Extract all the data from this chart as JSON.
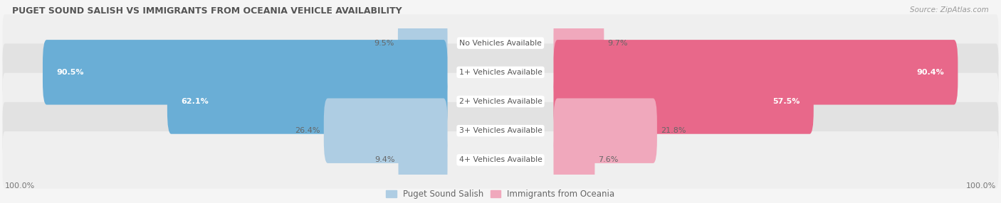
{
  "title": "PUGET SOUND SALISH VS IMMIGRANTS FROM OCEANIA VEHICLE AVAILABILITY",
  "source": "Source: ZipAtlas.com",
  "categories": [
    "No Vehicles Available",
    "1+ Vehicles Available",
    "2+ Vehicles Available",
    "3+ Vehicles Available",
    "4+ Vehicles Available"
  ],
  "left_values": [
    9.5,
    90.5,
    62.1,
    26.4,
    9.4
  ],
  "right_values": [
    9.7,
    90.4,
    57.5,
    21.8,
    7.6
  ],
  "left_color_strong": "#6aaed6",
  "left_color_light": "#aecde3",
  "right_color_strong": "#e8688a",
  "right_color_light": "#f0a8bc",
  "left_label": "Puget Sound Salish",
  "right_label": "Immigrants from Oceania",
  "max_value": 100.0,
  "row_bg_odd": "#efefef",
  "row_bg_even": "#e2e2e2",
  "fig_bg": "#f5f5f5"
}
